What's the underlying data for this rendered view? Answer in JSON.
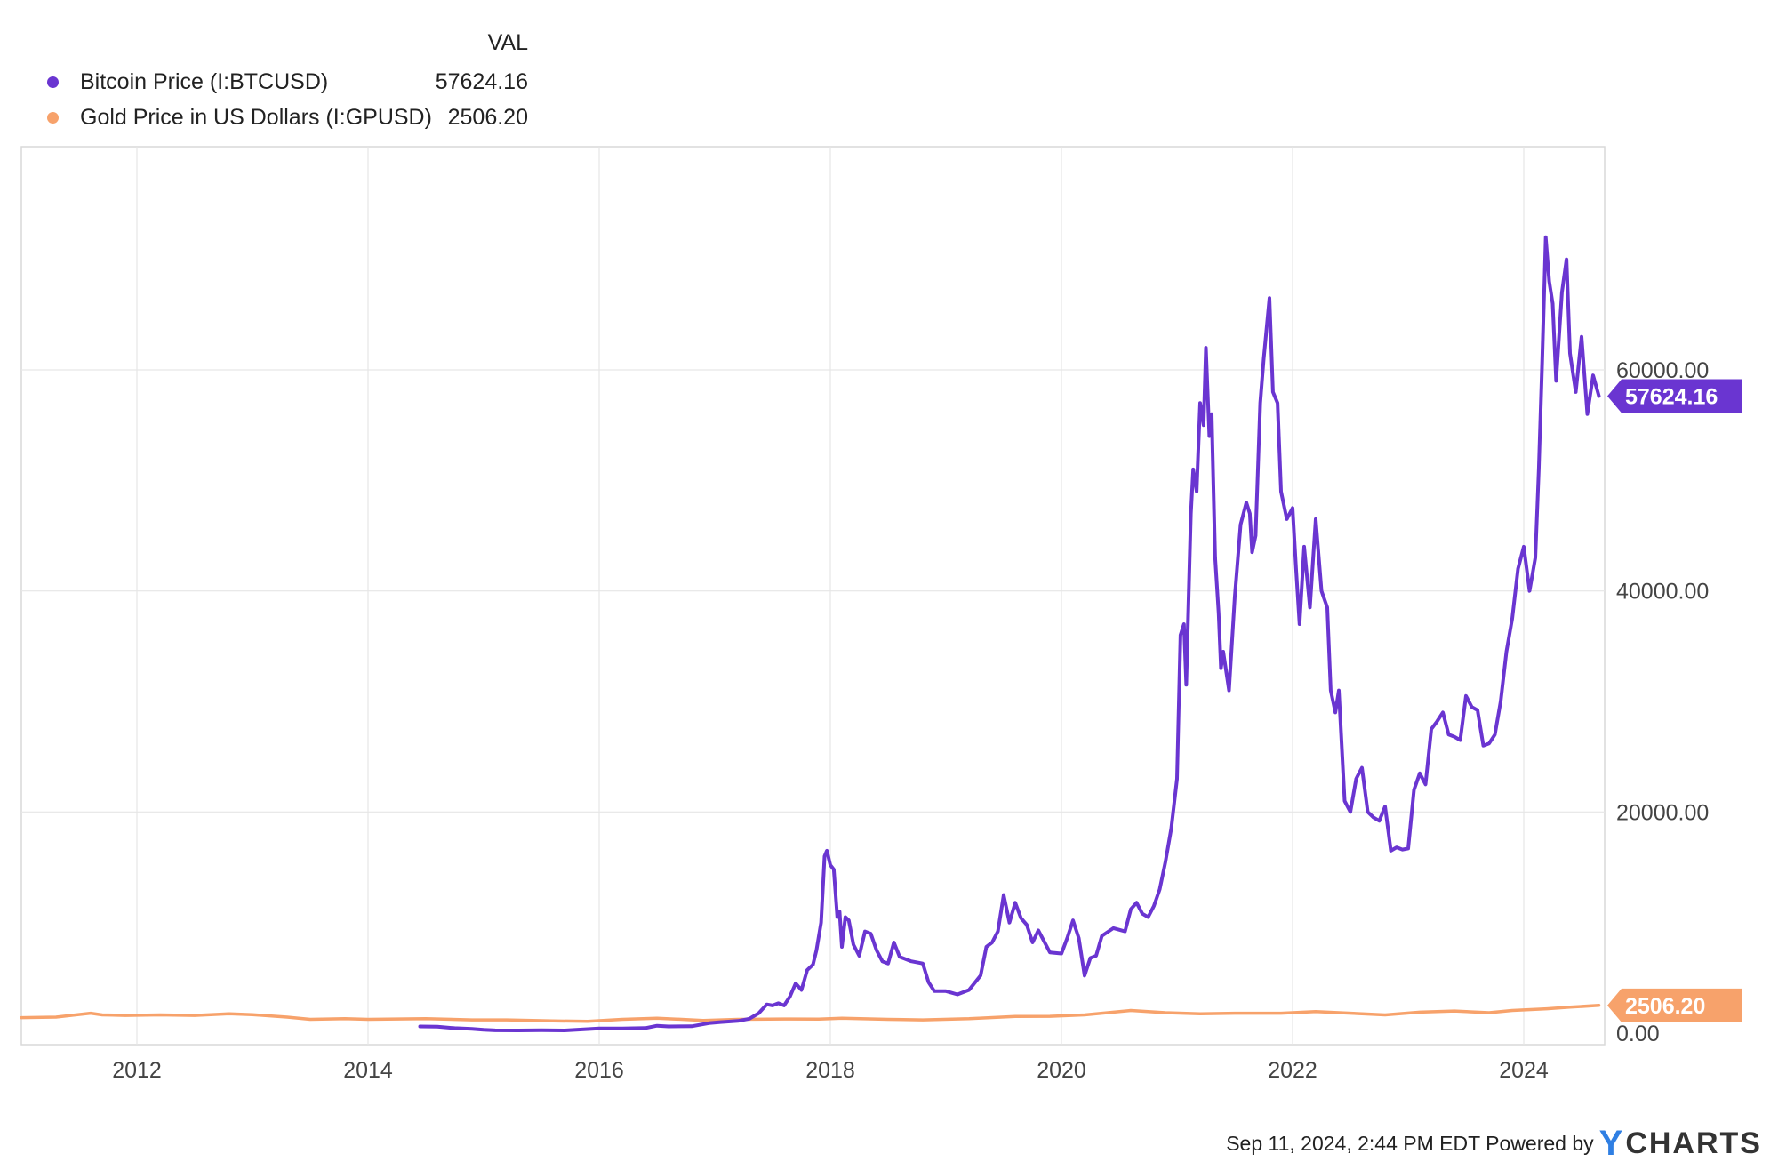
{
  "legend": {
    "header": "VAL",
    "items": [
      {
        "name": "Bitcoin Price (I:BTCUSD)",
        "value": "57624.16",
        "color": "#6a35d1"
      },
      {
        "name": "Gold Price in US Dollars (I:GPUSD)",
        "value": "2506.20",
        "color": "#f7a26b"
      }
    ]
  },
  "footer": {
    "timestamp": "Sep 11, 2024, 2:44 PM EDT",
    "powered_by": "Powered by",
    "brand_y": "Y",
    "brand_rest": "CHARTS"
  },
  "chart_data": {
    "type": "line",
    "x_range": [
      2011.0,
      2024.7
    ],
    "y_range": [
      0,
      79000
    ],
    "x_ticks": [
      2012,
      2014,
      2016,
      2018,
      2020,
      2022,
      2024
    ],
    "x_tick_labels": [
      "2012",
      "2014",
      "2016",
      "2018",
      "2020",
      "2022",
      "2024"
    ],
    "y_ticks": [
      0,
      20000,
      40000,
      60000
    ],
    "y_tick_labels": [
      "0.00",
      "20000.00",
      "40000.00",
      "60000.00"
    ],
    "y_axis_side": "right",
    "grid": true,
    "series": [
      {
        "name": "Bitcoin Price (I:BTCUSD)",
        "color": "#6a35d1",
        "last_value": 57624.16,
        "last_label": "57624.16",
        "points": [
          [
            2014.45,
            600
          ],
          [
            2014.6,
            580
          ],
          [
            2014.75,
            450
          ],
          [
            2014.9,
            380
          ],
          [
            2015.0,
            300
          ],
          [
            2015.1,
            250
          ],
          [
            2015.3,
            240
          ],
          [
            2015.5,
            260
          ],
          [
            2015.7,
            240
          ],
          [
            2015.85,
            330
          ],
          [
            2016.0,
            430
          ],
          [
            2016.2,
            420
          ],
          [
            2016.4,
            460
          ],
          [
            2016.5,
            670
          ],
          [
            2016.6,
            600
          ],
          [
            2016.8,
            620
          ],
          [
            2016.95,
            900
          ],
          [
            2017.05,
            1000
          ],
          [
            2017.2,
            1100
          ],
          [
            2017.3,
            1300
          ],
          [
            2017.38,
            1800
          ],
          [
            2017.45,
            2600
          ],
          [
            2017.5,
            2500
          ],
          [
            2017.55,
            2700
          ],
          [
            2017.6,
            2500
          ],
          [
            2017.65,
            3300
          ],
          [
            2017.7,
            4500
          ],
          [
            2017.75,
            3900
          ],
          [
            2017.8,
            5700
          ],
          [
            2017.85,
            6200
          ],
          [
            2017.88,
            7500
          ],
          [
            2017.92,
            10000
          ],
          [
            2017.95,
            16000
          ],
          [
            2017.97,
            16500
          ],
          [
            2018.0,
            15200
          ],
          [
            2018.03,
            14800
          ],
          [
            2018.06,
            10500
          ],
          [
            2018.08,
            11000
          ],
          [
            2018.1,
            7800
          ],
          [
            2018.13,
            10500
          ],
          [
            2018.16,
            10200
          ],
          [
            2018.2,
            8000
          ],
          [
            2018.25,
            7000
          ],
          [
            2018.3,
            9200
          ],
          [
            2018.35,
            9000
          ],
          [
            2018.4,
            7500
          ],
          [
            2018.45,
            6500
          ],
          [
            2018.5,
            6300
          ],
          [
            2018.55,
            8200
          ],
          [
            2018.6,
            6900
          ],
          [
            2018.7,
            6500
          ],
          [
            2018.8,
            6300
          ],
          [
            2018.85,
            4600
          ],
          [
            2018.9,
            3800
          ],
          [
            2019.0,
            3800
          ],
          [
            2019.1,
            3500
          ],
          [
            2019.2,
            3900
          ],
          [
            2019.3,
            5200
          ],
          [
            2019.35,
            7800
          ],
          [
            2019.4,
            8200
          ],
          [
            2019.45,
            9200
          ],
          [
            2019.5,
            12500
          ],
          [
            2019.55,
            10000
          ],
          [
            2019.6,
            11800
          ],
          [
            2019.65,
            10400
          ],
          [
            2019.7,
            9800
          ],
          [
            2019.75,
            8200
          ],
          [
            2019.8,
            9300
          ],
          [
            2019.9,
            7300
          ],
          [
            2020.0,
            7200
          ],
          [
            2020.05,
            8600
          ],
          [
            2020.1,
            10200
          ],
          [
            2020.15,
            8600
          ],
          [
            2020.2,
            5200
          ],
          [
            2020.25,
            6800
          ],
          [
            2020.3,
            7000
          ],
          [
            2020.35,
            8800
          ],
          [
            2020.45,
            9500
          ],
          [
            2020.55,
            9200
          ],
          [
            2020.6,
            11200
          ],
          [
            2020.65,
            11800
          ],
          [
            2020.7,
            10800
          ],
          [
            2020.75,
            10500
          ],
          [
            2020.8,
            11500
          ],
          [
            2020.85,
            13000
          ],
          [
            2020.9,
            15500
          ],
          [
            2020.95,
            18500
          ],
          [
            2021.0,
            23000
          ],
          [
            2021.03,
            36000
          ],
          [
            2021.06,
            37000
          ],
          [
            2021.08,
            31500
          ],
          [
            2021.12,
            47000
          ],
          [
            2021.14,
            51000
          ],
          [
            2021.17,
            49000
          ],
          [
            2021.2,
            57000
          ],
          [
            2021.23,
            55000
          ],
          [
            2021.25,
            62000
          ],
          [
            2021.28,
            54000
          ],
          [
            2021.3,
            56000
          ],
          [
            2021.33,
            43000
          ],
          [
            2021.36,
            38000
          ],
          [
            2021.38,
            33000
          ],
          [
            2021.4,
            34500
          ],
          [
            2021.45,
            31000
          ],
          [
            2021.5,
            39500
          ],
          [
            2021.55,
            46000
          ],
          [
            2021.6,
            48000
          ],
          [
            2021.63,
            47000
          ],
          [
            2021.65,
            43500
          ],
          [
            2021.68,
            45000
          ],
          [
            2021.72,
            57000
          ],
          [
            2021.75,
            61000
          ],
          [
            2021.8,
            66500
          ],
          [
            2021.83,
            58000
          ],
          [
            2021.87,
            57000
          ],
          [
            2021.9,
            49000
          ],
          [
            2021.95,
            46500
          ],
          [
            2022.0,
            47500
          ],
          [
            2022.03,
            42000
          ],
          [
            2022.06,
            37000
          ],
          [
            2022.1,
            44000
          ],
          [
            2022.15,
            38500
          ],
          [
            2022.2,
            46500
          ],
          [
            2022.25,
            40000
          ],
          [
            2022.3,
            38500
          ],
          [
            2022.33,
            31000
          ],
          [
            2022.37,
            29000
          ],
          [
            2022.4,
            31000
          ],
          [
            2022.45,
            21000
          ],
          [
            2022.5,
            20000
          ],
          [
            2022.55,
            23000
          ],
          [
            2022.6,
            24000
          ],
          [
            2022.65,
            20000
          ],
          [
            2022.7,
            19500
          ],
          [
            2022.75,
            19200
          ],
          [
            2022.8,
            20500
          ],
          [
            2022.85,
            16500
          ],
          [
            2022.9,
            16800
          ],
          [
            2022.95,
            16600
          ],
          [
            2023.0,
            16700
          ],
          [
            2023.05,
            22000
          ],
          [
            2023.1,
            23500
          ],
          [
            2023.15,
            22500
          ],
          [
            2023.2,
            27500
          ],
          [
            2023.25,
            28200
          ],
          [
            2023.3,
            29000
          ],
          [
            2023.35,
            27000
          ],
          [
            2023.4,
            26800
          ],
          [
            2023.45,
            26500
          ],
          [
            2023.5,
            30500
          ],
          [
            2023.55,
            29500
          ],
          [
            2023.6,
            29200
          ],
          [
            2023.65,
            26000
          ],
          [
            2023.7,
            26200
          ],
          [
            2023.75,
            27000
          ],
          [
            2023.8,
            30000
          ],
          [
            2023.85,
            34500
          ],
          [
            2023.9,
            37500
          ],
          [
            2023.95,
            42000
          ],
          [
            2024.0,
            44000
          ],
          [
            2024.05,
            40000
          ],
          [
            2024.1,
            43000
          ],
          [
            2024.13,
            51000
          ],
          [
            2024.16,
            61000
          ],
          [
            2024.19,
            72000
          ],
          [
            2024.22,
            68000
          ],
          [
            2024.25,
            66000
          ],
          [
            2024.28,
            59000
          ],
          [
            2024.33,
            67000
          ],
          [
            2024.37,
            70000
          ],
          [
            2024.4,
            61500
          ],
          [
            2024.45,
            58000
          ],
          [
            2024.5,
            63000
          ],
          [
            2024.55,
            56000
          ],
          [
            2024.6,
            59500
          ],
          [
            2024.65,
            57624.16
          ]
        ]
      },
      {
        "name": "Gold Price in US Dollars (I:GPUSD)",
        "color": "#f7a26b",
        "last_value": 2506.2,
        "last_label": "2506.20",
        "points": [
          [
            2011.0,
            1400
          ],
          [
            2011.3,
            1450
          ],
          [
            2011.6,
            1800
          ],
          [
            2011.7,
            1650
          ],
          [
            2011.9,
            1600
          ],
          [
            2012.2,
            1650
          ],
          [
            2012.5,
            1600
          ],
          [
            2012.8,
            1750
          ],
          [
            2013.0,
            1670
          ],
          [
            2013.3,
            1450
          ],
          [
            2013.5,
            1250
          ],
          [
            2013.8,
            1300
          ],
          [
            2014.0,
            1250
          ],
          [
            2014.5,
            1300
          ],
          [
            2014.9,
            1200
          ],
          [
            2015.2,
            1200
          ],
          [
            2015.6,
            1100
          ],
          [
            2015.9,
            1070
          ],
          [
            2016.2,
            1250
          ],
          [
            2016.5,
            1350
          ],
          [
            2016.9,
            1150
          ],
          [
            2017.2,
            1250
          ],
          [
            2017.6,
            1280
          ],
          [
            2017.9,
            1270
          ],
          [
            2018.1,
            1340
          ],
          [
            2018.5,
            1250
          ],
          [
            2018.8,
            1200
          ],
          [
            2019.2,
            1300
          ],
          [
            2019.6,
            1500
          ],
          [
            2019.9,
            1520
          ],
          [
            2020.2,
            1650
          ],
          [
            2020.6,
            2050
          ],
          [
            2020.9,
            1850
          ],
          [
            2021.2,
            1750
          ],
          [
            2021.5,
            1800
          ],
          [
            2021.9,
            1800
          ],
          [
            2022.2,
            1950
          ],
          [
            2022.6,
            1750
          ],
          [
            2022.8,
            1650
          ],
          [
            2023.1,
            1900
          ],
          [
            2023.4,
            2000
          ],
          [
            2023.7,
            1850
          ],
          [
            2023.9,
            2050
          ],
          [
            2024.2,
            2200
          ],
          [
            2024.4,
            2350
          ],
          [
            2024.65,
            2506.2
          ]
        ]
      }
    ]
  }
}
